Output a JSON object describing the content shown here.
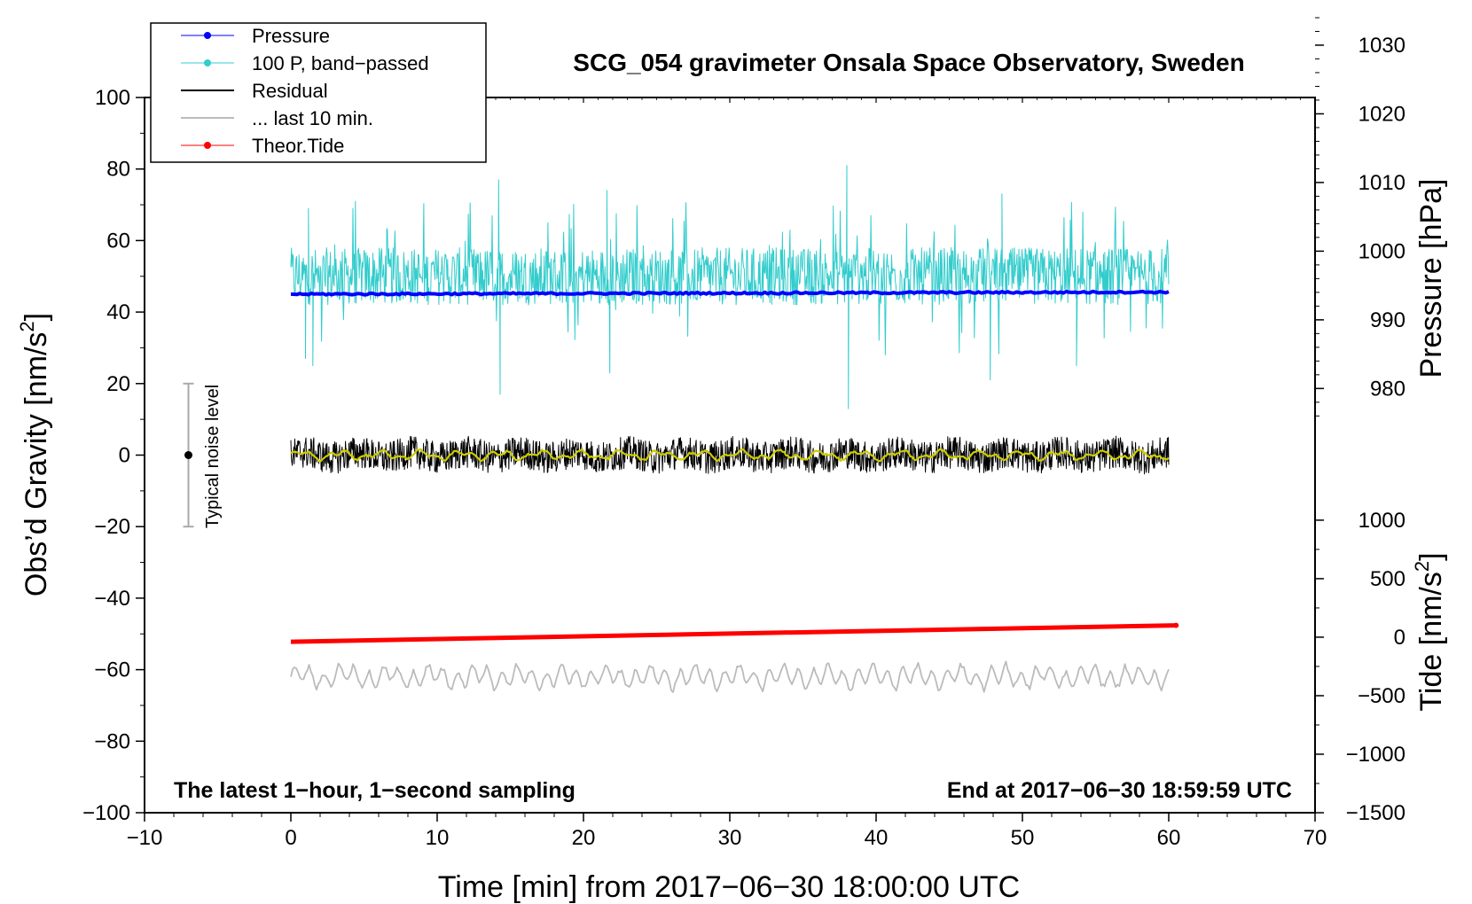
{
  "chart_data": {
    "type": "line",
    "title": "SCG_054 gravimeter Onsala Space Observatory, Sweden",
    "xlabel": "Time [min] from 2017−06−30 18:00:00 UTC",
    "ylabel_left": "Obs’d Gravity [nm/s",
    "ylabel_left_sup": "2",
    "ylabel_left_end": "]",
    "ylabel_right_top": "Pressure [hPa]",
    "ylabel_right_bottom": "Tide [nm/s",
    "ylabel_right_bottom_sup": "2",
    "ylabel_right_bottom_end": "]",
    "xlim": [
      -10,
      70
    ],
    "ylim": [
      -100,
      100
    ],
    "x_ticks": [
      -10,
      0,
      10,
      20,
      30,
      40,
      50,
      60,
      70
    ],
    "x_tick_labels": [
      "−10",
      "0",
      "10",
      "20",
      "30",
      "40",
      "50",
      "60",
      "70"
    ],
    "y_ticks": [
      -100,
      -80,
      -60,
      -40,
      -20,
      0,
      20,
      40,
      60,
      80,
      100
    ],
    "y_tick_labels": [
      "−100",
      "−80",
      "−60",
      "−40",
      "−20",
      "0",
      "20",
      "40",
      "60",
      "80",
      "100"
    ],
    "pressure_axis": {
      "ticks": [
        980,
        990,
        1000,
        1010,
        1020,
        1030
      ],
      "tick_labels": [
        "980",
        "990",
        "1000",
        "1010",
        "1020",
        "1030"
      ],
      "pressure_at_gravity_0": 970.3,
      "hpa_per_nm": 0.5208
    },
    "tide_axis": {
      "ticks": [
        -1500,
        -1000,
        -500,
        0,
        500,
        1000
      ],
      "tick_labels": [
        "−1500",
        "−1000",
        "−500",
        "0",
        "500",
        "1000"
      ],
      "tide_at_gravity_minus100": -1500,
      "tide_per_nm": 30.56
    },
    "legend": {
      "position": "top-left",
      "entries": [
        {
          "label": "Pressure",
          "color": "#0000ff",
          "marker": true
        },
        {
          "label": "100 P, band−passed",
          "color": "#33cccc",
          "marker": true
        },
        {
          "label": "Residual",
          "color": "#000000",
          "marker": false
        },
        {
          "label": "... last 10 min.",
          "color": "#bbbbbb",
          "marker": false
        },
        {
          "label": "Theor.Tide",
          "color": "#ff0000",
          "marker": true
        }
      ]
    },
    "noise_bar": {
      "x": -7,
      "center": 0,
      "low": -20,
      "high": 20,
      "label": "Typical noise level"
    },
    "annotations": {
      "bottom_left": "The latest 1−hour, 1−second sampling",
      "bottom_right": "End at 2017−06−30 18:59:59 UTC"
    },
    "series": [
      {
        "name": "Pressure",
        "color": "#0000ff",
        "x_range": [
          0,
          60
        ],
        "values_plot_units": {
          "start": 45.0,
          "end": 45.6
        }
      },
      {
        "name": "100 P, band−passed",
        "color": "#33cccc",
        "x_range": [
          0,
          60
        ],
        "center": 50,
        "min": 13,
        "max": 81
      },
      {
        "name": "Residual",
        "color": "#000000",
        "x_range": [
          0,
          60
        ],
        "center": 0,
        "min": -7,
        "max": 7
      },
      {
        "name": "Residual smoothed",
        "color": "#cccc00",
        "x_range": [
          0,
          60
        ],
        "center": 0,
        "min": -2,
        "max": 2
      },
      {
        "name": "... last 10 min.",
        "color": "#bbbbbb",
        "x_range": [
          0,
          60
        ],
        "center": -62,
        "min": -68,
        "max": -55
      },
      {
        "name": "Theor.Tide",
        "color": "#ff0000",
        "x_range": [
          0,
          60.5
        ],
        "values_plot_units": {
          "start": -52.2,
          "end": -47.6
        }
      }
    ]
  }
}
